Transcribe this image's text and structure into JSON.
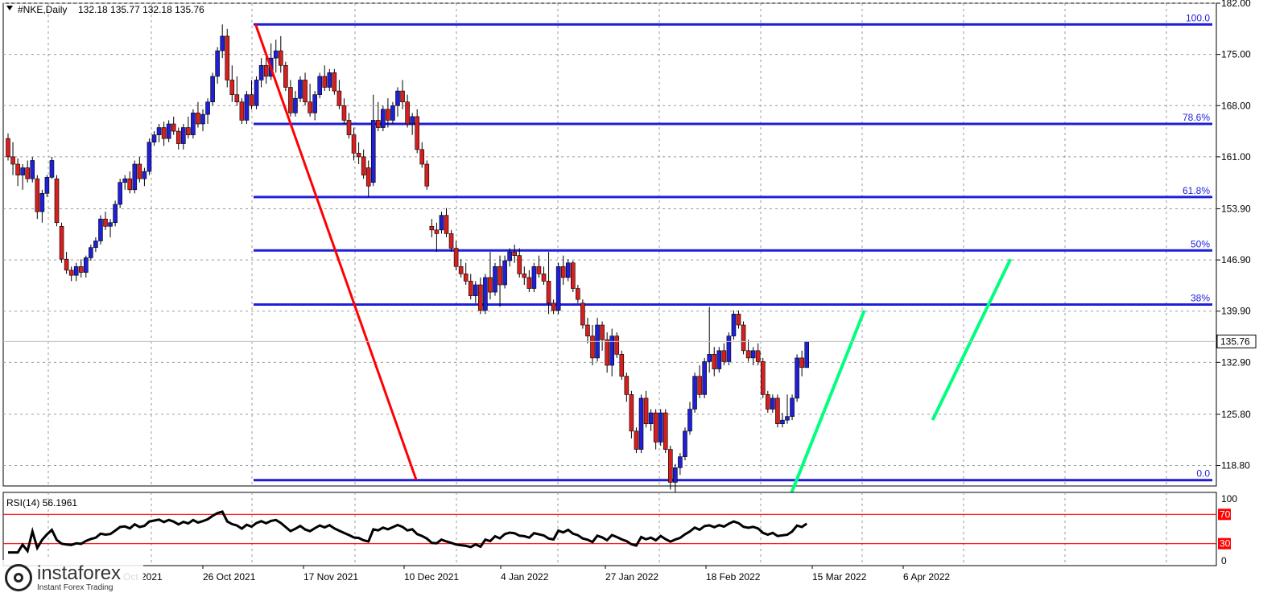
{
  "header": {
    "dropdown_icon": "triangle-down-icon",
    "symbol": "#NKE,Daily",
    "ohlc": "132.18 135.77 132.18 135.76"
  },
  "price_label": "135.76",
  "rsi_header": "RSI(14) 56.1961",
  "logo": {
    "name": "instaforex",
    "tagline": "Instant Forex Trading"
  },
  "colors": {
    "bull": "#1f1fd6",
    "bear": "#d61f1f",
    "fib": "#1f1fd6",
    "down_trend": "#ff0000",
    "up_trend": "#00ff7f",
    "rsi_line": "#000000",
    "rsi_levels": "#ff0000"
  },
  "chart_data": [
    {
      "type": "candlestick",
      "title": "#NKE,Daily",
      "ylim": [
        116.0,
        182.0
      ],
      "y_ticks": [
        "182.00",
        "175.00",
        "168.00",
        "161.00",
        "153.90",
        "146.90",
        "139.90",
        "132.90",
        "125.80",
        "118.80"
      ],
      "x_ticks": [
        "... Oct 2021",
        "26 Oct 2021",
        "17 Nov 2021",
        "10 Dec 2021",
        "4 Jan 2022",
        "27 Jan 2022",
        "18 Feb 2022",
        "15 Mar 2022",
        "6 Apr 2022"
      ],
      "x_ticks_visible": [
        "Oct 2021",
        "26 Oct 2021",
        "17 Nov 2021",
        "10 Dec 2021",
        "4 Jan 2022",
        "27 Jan 2022",
        "18 Feb 2022",
        "15 Mar 2022",
        "6 Apr 2022"
      ],
      "current_price": 135.76,
      "fibonacci_levels": [
        {
          "label": "100.0",
          "price": 179.1
        },
        {
          "label": "78.6%",
          "price": 165.5
        },
        {
          "label": "61.8%",
          "price": 155.5
        },
        {
          "label": "50%",
          "price": 148.2
        },
        {
          "label": "38%",
          "price": 140.8
        },
        {
          "label": "0.0",
          "price": 116.8
        }
      ],
      "trend_lines": [
        {
          "name": "down",
          "from": {
            "bar": 50,
            "price": 179.1
          },
          "to": {
            "bar": 83,
            "price": 116.8
          }
        },
        {
          "name": "up-1",
          "from": {
            "bar": 160,
            "price": 115.0
          },
          "to": {
            "bar": 175,
            "price": 140.0
          }
        },
        {
          "name": "up-2",
          "from": {
            "bar": 189,
            "price": 125.0
          },
          "to": {
            "bar": 205,
            "price": 147.0
          }
        }
      ],
      "candles": [
        [
          163.5,
          164.2,
          160.5,
          161.0
        ],
        [
          161.0,
          163.0,
          158.5,
          160.0
        ],
        [
          160.0,
          160.8,
          157.0,
          158.5
        ],
        [
          158.5,
          160.0,
          156.5,
          159.5
        ],
        [
          159.5,
          160.5,
          157.5,
          158.0
        ],
        [
          158.0,
          161.0,
          157.5,
          160.5
        ],
        [
          158.0,
          158.5,
          152.5,
          153.5
        ],
        [
          153.5,
          156.5,
          152.0,
          156.0
        ],
        [
          156.0,
          158.5,
          155.5,
          158.2
        ],
        [
          158.2,
          161.0,
          158.0,
          160.5
        ],
        [
          158.0,
          158.5,
          151.5,
          152.0
        ],
        [
          151.5,
          152.0,
          146.5,
          147.0
        ],
        [
          147.0,
          148.0,
          145.0,
          145.5
        ],
        [
          145.5,
          146.0,
          144.0,
          144.8
        ],
        [
          144.8,
          146.5,
          144.0,
          146.0
        ],
        [
          146.0,
          147.0,
          144.5,
          145.2
        ],
        [
          145.2,
          147.5,
          144.5,
          147.2
        ],
        [
          147.2,
          149.0,
          146.8,
          148.6
        ],
        [
          148.6,
          150.0,
          148.0,
          149.5
        ],
        [
          149.5,
          153.0,
          149.0,
          152.5
        ],
        [
          152.5,
          153.5,
          151.0,
          151.5
        ],
        [
          151.5,
          152.5,
          150.0,
          152.0
        ],
        [
          152.0,
          155.0,
          151.5,
          154.5
        ],
        [
          154.5,
          158.0,
          154.0,
          157.5
        ],
        [
          157.5,
          158.5,
          156.5,
          158.0
        ],
        [
          158.0,
          159.0,
          156.0,
          156.5
        ],
        [
          156.5,
          160.5,
          156.0,
          160.0
        ],
        [
          160.0,
          161.0,
          157.5,
          158.0
        ],
        [
          158.0,
          159.5,
          157.0,
          159.0
        ],
        [
          159.0,
          163.5,
          158.5,
          163.0
        ],
        [
          163.0,
          164.5,
          162.5,
          164.0
        ],
        [
          164.0,
          165.5,
          163.0,
          165.0
        ],
        [
          165.0,
          165.8,
          162.5,
          163.5
        ],
        [
          163.5,
          166.0,
          163.0,
          165.5
        ],
        [
          165.5,
          166.5,
          164.0,
          164.5
        ],
        [
          164.5,
          165.0,
          162.0,
          162.8
        ],
        [
          162.8,
          165.5,
          162.0,
          165.0
        ],
        [
          165.0,
          166.5,
          163.5,
          164.0
        ],
        [
          164.0,
          167.5,
          163.5,
          167.0
        ],
        [
          167.0,
          168.5,
          165.0,
          165.5
        ],
        [
          165.5,
          167.5,
          164.5,
          166.8
        ],
        [
          166.8,
          169.0,
          165.5,
          168.5
        ],
        [
          168.5,
          172.5,
          168.0,
          172.0
        ],
        [
          172.0,
          176.0,
          171.0,
          175.5
        ],
        [
          175.5,
          179.1,
          174.5,
          177.5
        ],
        [
          177.5,
          178.5,
          170.5,
          171.5
        ],
        [
          171.5,
          173.5,
          168.5,
          169.5
        ],
        [
          169.5,
          172.0,
          168.0,
          168.5
        ],
        [
          168.5,
          169.0,
          165.5,
          166.0
        ],
        [
          166.0,
          170.0,
          165.5,
          169.5
        ],
        [
          169.5,
          171.5,
          167.5,
          168.0
        ],
        [
          168.0,
          172.0,
          167.5,
          171.5
        ],
        [
          171.5,
          174.5,
          170.5,
          173.5
        ],
        [
          173.5,
          175.0,
          171.0,
          172.0
        ],
        [
          172.0,
          176.5,
          171.5,
          174.5
        ],
        [
          174.5,
          177.0,
          172.5,
          175.5
        ],
        [
          175.5,
          177.5,
          172.5,
          173.5
        ],
        [
          173.5,
          174.0,
          170.0,
          170.5
        ],
        [
          170.5,
          171.5,
          166.5,
          167.0
        ],
        [
          167.0,
          170.0,
          166.5,
          169.0
        ],
        [
          169.0,
          172.0,
          168.5,
          171.5
        ],
        [
          171.5,
          172.5,
          168.0,
          168.5
        ],
        [
          168.5,
          171.0,
          166.5,
          167.0
        ],
        [
          167.0,
          170.0,
          166.0,
          169.5
        ],
        [
          169.5,
          172.5,
          169.0,
          172.0
        ],
        [
          172.0,
          173.5,
          170.0,
          170.5
        ],
        [
          170.5,
          173.0,
          170.0,
          172.5
        ],
        [
          172.5,
          173.0,
          169.5,
          170.0
        ],
        [
          170.0,
          171.5,
          167.5,
          168.0
        ],
        [
          168.0,
          169.0,
          165.5,
          166.0
        ],
        [
          166.0,
          167.0,
          163.5,
          164.0
        ],
        [
          164.0,
          165.0,
          160.5,
          161.5
        ],
        [
          161.5,
          163.0,
          160.0,
          161.0
        ],
        [
          161.0,
          162.0,
          158.0,
          158.5
        ],
        [
          159.5,
          160.5,
          155.5,
          157.0
        ],
        [
          157.5,
          169.5,
          157.0,
          166.0
        ],
        [
          166.0,
          168.5,
          164.5,
          165.0
        ],
        [
          165.0,
          168.0,
          164.5,
          167.5
        ],
        [
          167.5,
          169.0,
          165.0,
          166.0
        ],
        [
          166.0,
          168.5,
          165.5,
          168.0
        ],
        [
          168.0,
          170.5,
          166.5,
          170.0
        ],
        [
          170.0,
          171.5,
          167.5,
          168.5
        ],
        [
          168.5,
          169.5,
          165.0,
          165.5
        ],
        [
          165.5,
          167.0,
          164.0,
          166.5
        ],
        [
          166.5,
          167.5,
          161.5,
          162.0
        ],
        [
          162.0,
          163.0,
          159.5,
          160.0
        ],
        [
          160.0,
          160.5,
          156.5,
          157.0
        ],
        [
          151.5,
          152.5,
          150.0,
          151.0
        ],
        [
          151.0,
          152.0,
          148.0,
          150.5
        ],
        [
          151.0,
          153.5,
          150.5,
          153.0
        ],
        [
          153.0,
          154.0,
          150.0,
          150.5
        ],
        [
          150.5,
          151.0,
          148.0,
          148.5
        ],
        [
          148.5,
          149.5,
          145.5,
          146.0
        ],
        [
          146.0,
          147.0,
          144.5,
          145.0
        ],
        [
          145.0,
          146.5,
          143.5,
          144.0
        ],
        [
          144.0,
          145.0,
          141.5,
          142.0
        ],
        [
          142.0,
          144.0,
          141.0,
          143.5
        ],
        [
          143.5,
          144.5,
          139.5,
          140.0
        ],
        [
          140.0,
          145.0,
          139.5,
          144.5
        ],
        [
          144.5,
          148.0,
          141.5,
          142.5
        ],
        [
          142.5,
          146.5,
          142.0,
          146.0
        ],
        [
          146.0,
          147.5,
          140.5,
          143.5
        ],
        [
          143.5,
          147.5,
          143.0,
          146.8
        ],
        [
          146.8,
          148.5,
          146.0,
          148.0
        ],
        [
          148.0,
          149.0,
          146.5,
          147.5
        ],
        [
          147.5,
          148.5,
          144.5,
          145.0
        ],
        [
          145.0,
          146.0,
          143.5,
          144.5
        ],
        [
          144.5,
          145.5,
          142.5,
          143.0
        ],
        [
          143.0,
          146.5,
          142.5,
          146.0
        ],
        [
          146.0,
          147.5,
          144.5,
          145.0
        ],
        [
          145.0,
          146.0,
          143.5,
          144.0
        ],
        [
          144.0,
          148.0,
          139.5,
          141.0
        ],
        [
          141.0,
          141.5,
          139.5,
          140.0
        ],
        [
          140.0,
          146.5,
          139.5,
          146.0
        ],
        [
          146.0,
          147.5,
          143.5,
          144.5
        ],
        [
          144.5,
          147.0,
          144.0,
          146.5
        ],
        [
          146.5,
          146.8,
          142.5,
          143.0
        ],
        [
          143.0,
          143.5,
          141.0,
          141.5
        ],
        [
          141.0,
          141.5,
          137.5,
          138.0
        ],
        [
          138.0,
          139.0,
          135.5,
          136.5
        ],
        [
          136.5,
          138.0,
          132.5,
          133.5
        ],
        [
          133.5,
          139.0,
          133.0,
          138.0
        ],
        [
          138.0,
          138.5,
          134.5,
          136.0
        ],
        [
          136.0,
          137.0,
          131.5,
          132.5
        ],
        [
          132.5,
          137.5,
          131.0,
          136.5
        ],
        [
          136.5,
          137.0,
          133.5,
          134.0
        ],
        [
          134.0,
          134.5,
          130.5,
          131.0
        ],
        [
          131.0,
          131.5,
          127.5,
          128.5
        ],
        [
          128.5,
          129.0,
          122.5,
          123.5
        ],
        [
          123.5,
          124.0,
          120.5,
          121.0
        ],
        [
          121.0,
          128.5,
          120.5,
          128.0
        ],
        [
          128.0,
          129.0,
          124.0,
          124.5
        ],
        [
          124.5,
          126.5,
          123.5,
          126.0
        ],
        [
          126.0,
          126.5,
          121.0,
          122.0
        ],
        [
          122.0,
          126.5,
          121.5,
          126.0
        ],
        [
          126.0,
          126.5,
          120.5,
          121.0
        ],
        [
          121.0,
          121.5,
          115.5,
          116.5
        ],
        [
          116.5,
          119.0,
          115.0,
          118.5
        ],
        [
          118.5,
          120.5,
          117.5,
          120.0
        ],
        [
          120.0,
          124.0,
          119.5,
          123.5
        ],
        [
          123.5,
          127.5,
          123.0,
          126.5
        ],
        [
          126.5,
          131.5,
          126.0,
          131.0
        ],
        [
          131.0,
          132.5,
          128.0,
          128.5
        ],
        [
          128.5,
          133.5,
          128.0,
          133.0
        ],
        [
          133.0,
          140.5,
          131.5,
          134.0
        ],
        [
          134.0,
          135.0,
          131.0,
          132.0
        ],
        [
          132.0,
          135.0,
          131.5,
          134.5
        ],
        [
          134.5,
          135.5,
          132.5,
          133.0
        ],
        [
          133.0,
          137.0,
          132.5,
          136.5
        ],
        [
          136.5,
          140.0,
          136.0,
          139.5
        ],
        [
          139.5,
          140.0,
          137.5,
          138.0
        ],
        [
          138.0,
          138.5,
          134.0,
          134.5
        ],
        [
          134.5,
          136.0,
          133.0,
          133.5
        ],
        [
          133.5,
          135.0,
          132.5,
          134.5
        ],
        [
          134.5,
          135.5,
          132.5,
          133.0
        ],
        [
          133.0,
          133.5,
          128.0,
          128.5
        ],
        [
          128.5,
          129.0,
          126.0,
          126.5
        ],
        [
          126.5,
          128.5,
          126.0,
          128.0
        ],
        [
          128.0,
          128.5,
          124.0,
          124.5
        ],
        [
          124.5,
          126.0,
          124.0,
          125.0
        ],
        [
          125.0,
          128.5,
          124.5,
          125.5
        ],
        [
          125.5,
          128.5,
          125.0,
          128.0
        ],
        [
          128.0,
          134.0,
          127.5,
          133.5
        ],
        [
          133.5,
          134.5,
          131.0,
          132.2
        ],
        [
          132.18,
          135.77,
          132.18,
          135.76
        ]
      ]
    },
    {
      "type": "line",
      "title": "RSI(14) 56.1961",
      "ylim": [
        0,
        100
      ],
      "y_ticks": [
        "100",
        "0"
      ],
      "levels": [
        {
          "label": "70",
          "value": 70
        },
        {
          "label": "30",
          "value": 30
        }
      ],
      "last_value": 56.1961
    }
  ]
}
